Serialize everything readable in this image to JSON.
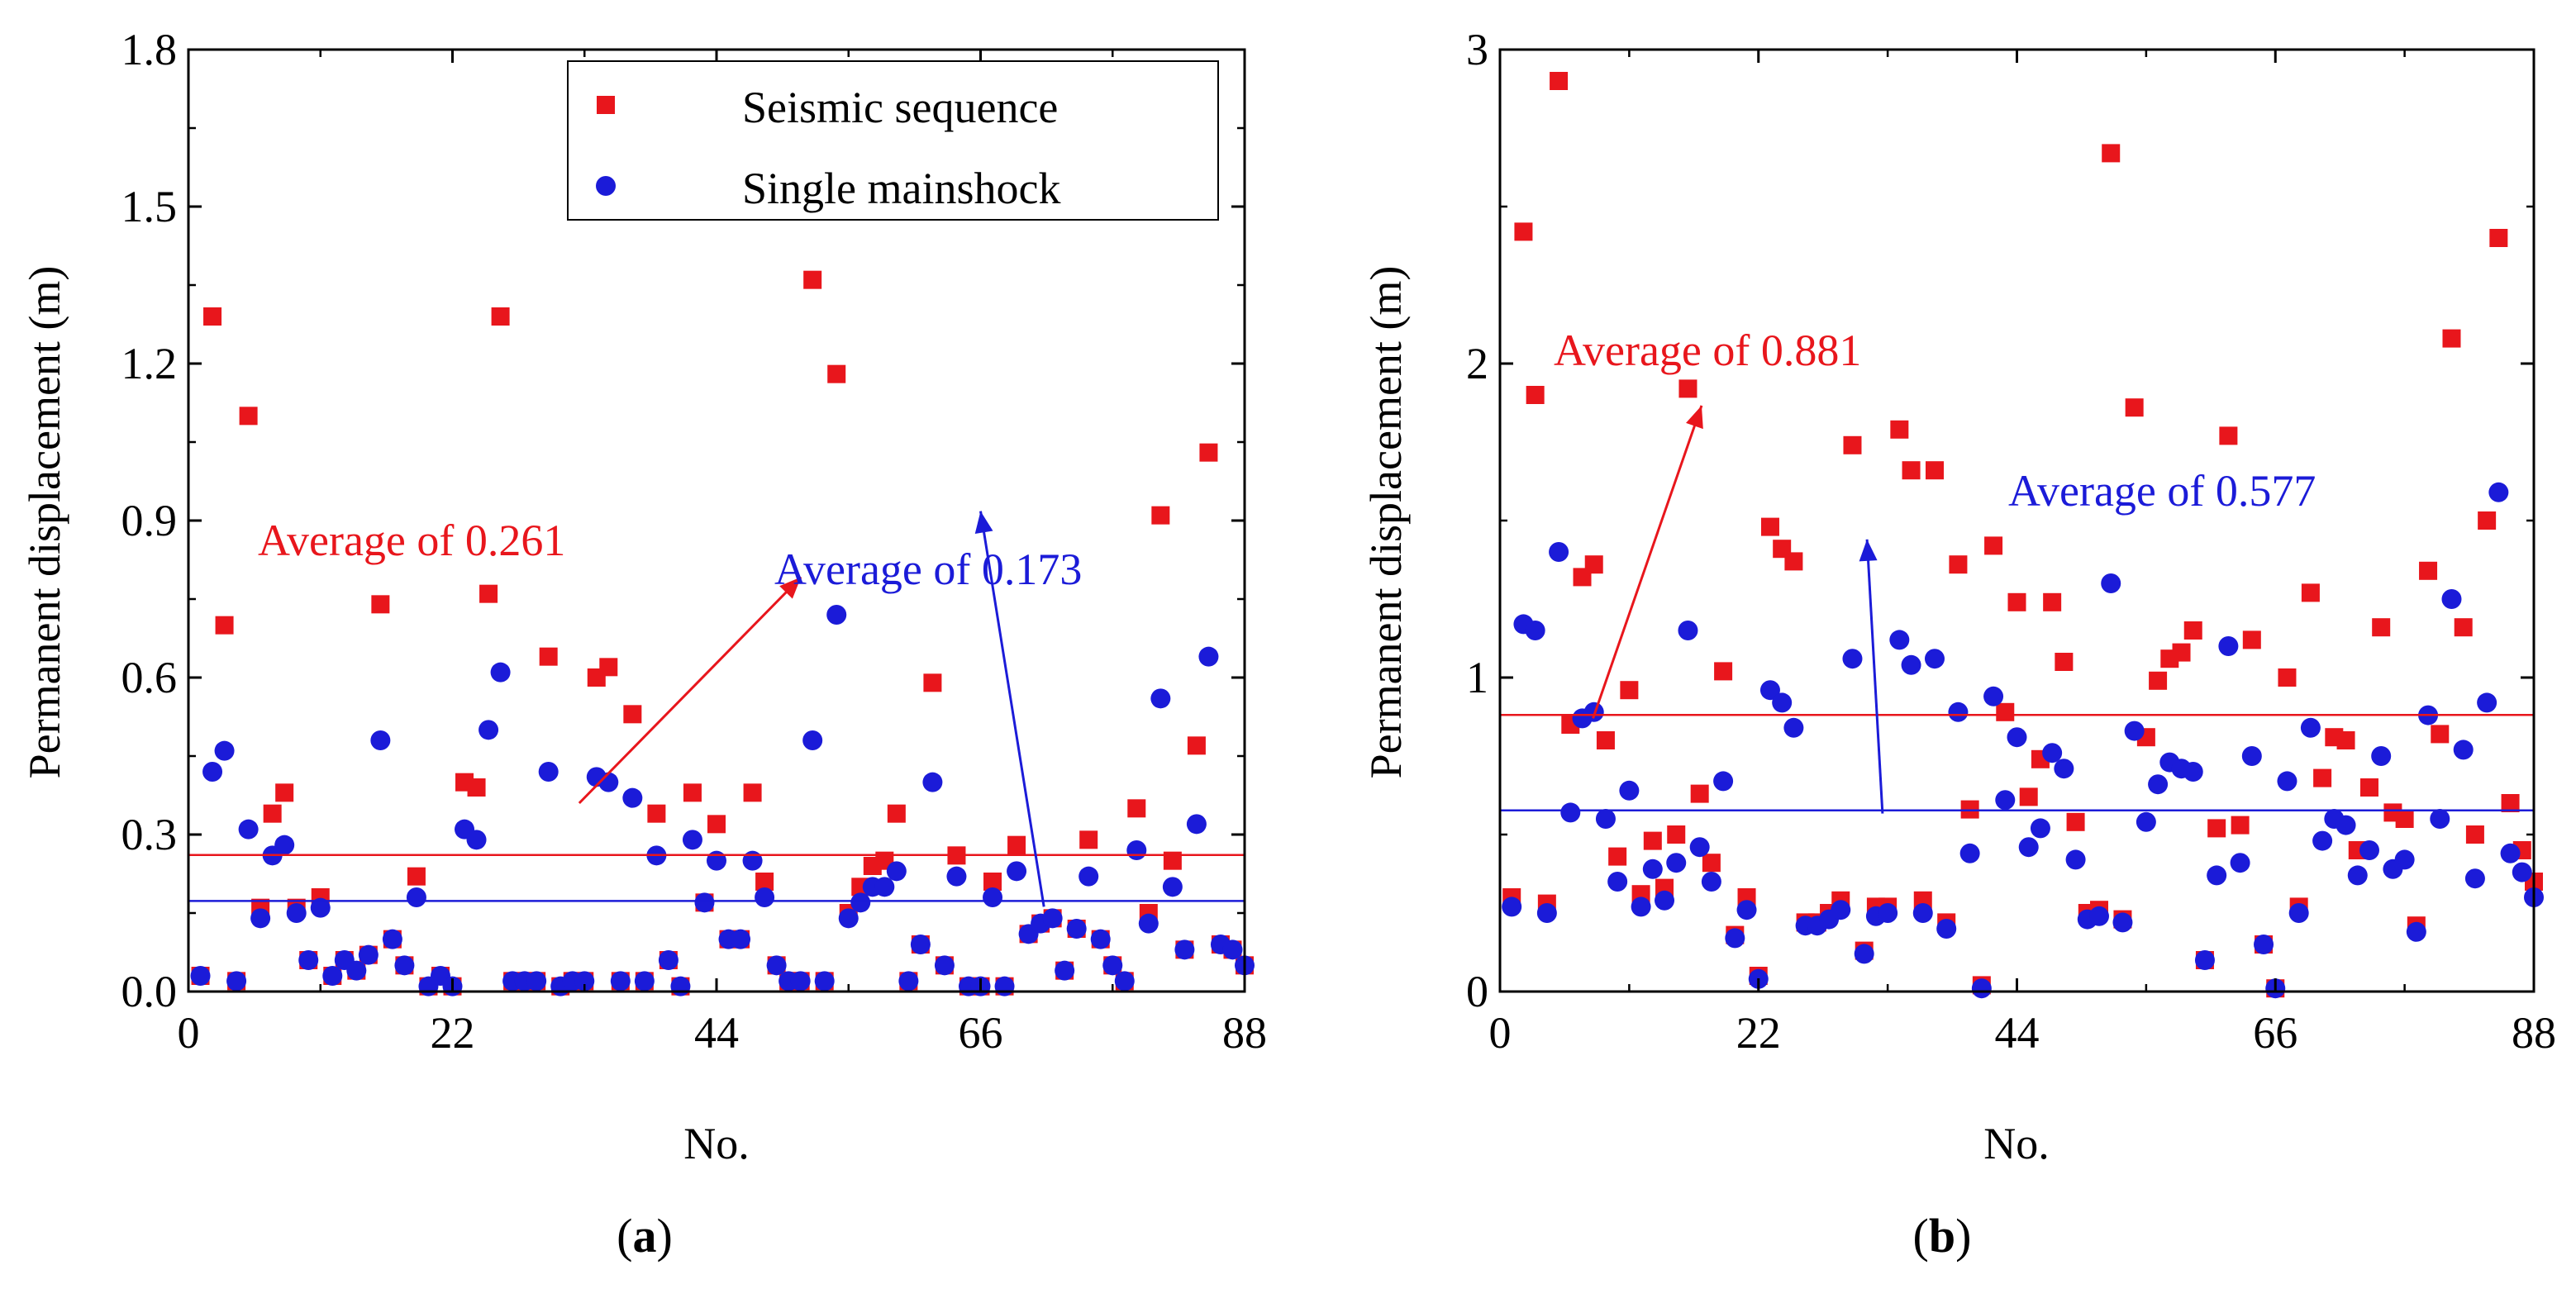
{
  "chart_data": [
    {
      "type": "scatter",
      "panel_label": "a",
      "xlabel": "No.",
      "ylabel": "Permanent displacement (m)",
      "xlim": [
        0,
        88
      ],
      "ylim": [
        0,
        1.8
      ],
      "xticks": [
        0,
        22,
        44,
        66,
        88
      ],
      "yticks": [
        0.0,
        0.3,
        0.6,
        0.9,
        1.2,
        1.5,
        1.8
      ],
      "ytick_labels": [
        "0.0",
        "0.3",
        "0.6",
        "0.9",
        "1.2",
        "1.5",
        "1.8"
      ],
      "legend": {
        "position": "top-right",
        "entries": [
          "Seismic sequence",
          "Single mainshock"
        ]
      },
      "series": [
        {
          "name": "Seismic sequence",
          "color": "#e8161c",
          "marker": "square",
          "x": [
            1,
            2,
            3,
            4,
            5,
            6,
            7,
            8,
            9,
            10,
            11,
            12,
            13,
            14,
            15,
            16,
            17,
            18,
            19,
            20,
            21,
            22,
            23,
            24,
            25,
            26,
            27,
            28,
            29,
            30,
            31,
            32,
            33,
            34,
            35,
            36,
            37,
            38,
            39,
            40,
            41,
            42,
            43,
            44,
            45,
            46,
            47,
            48,
            49,
            50,
            51,
            52,
            53,
            54,
            55,
            56,
            57,
            58,
            59,
            60,
            61,
            62,
            63,
            64,
            65,
            66,
            67,
            68,
            69,
            70,
            71,
            72,
            73,
            74,
            75,
            76,
            77,
            78,
            79,
            80,
            81,
            82,
            83,
            84,
            85,
            86,
            87,
            88
          ],
          "values": [
            0.03,
            1.29,
            0.7,
            0.02,
            1.1,
            0.16,
            0.34,
            0.38,
            0.16,
            0.06,
            0.18,
            0.03,
            0.06,
            0.04,
            0.07,
            0.74,
            0.1,
            0.05,
            0.22,
            0.01,
            0.03,
            0.01,
            0.4,
            0.39,
            0.76,
            1.29,
            0.02,
            0.02,
            0.02,
            0.64,
            0.01,
            0.02,
            0.02,
            0.6,
            0.62,
            0.02,
            0.53,
            0.02,
            0.34,
            0.06,
            0.01,
            0.38,
            0.17,
            0.32,
            0.1,
            0.1,
            0.38,
            0.21,
            0.05,
            0.02,
            0.02,
            1.36,
            0.02,
            1.18,
            0.15,
            0.2,
            0.24,
            0.25,
            0.34,
            0.02,
            0.09,
            0.59,
            0.05,
            0.26,
            0.01,
            0.01,
            0.21,
            0.01,
            0.28,
            0.11,
            0.13,
            0.14,
            0.04,
            0.12,
            0.29,
            0.1,
            0.05,
            0.02,
            0.35,
            0.15,
            0.91,
            0.25,
            0.08,
            0.47,
            1.03,
            0.09,
            0.08,
            0.05
          ],
          "average_label": "Average of 0.261",
          "average_value": 0.261
        },
        {
          "name": "Single mainshock",
          "color": "#1b1bd8",
          "marker": "circle",
          "x": [
            1,
            2,
            3,
            4,
            5,
            6,
            7,
            8,
            9,
            10,
            11,
            12,
            13,
            14,
            15,
            16,
            17,
            18,
            19,
            20,
            21,
            22,
            23,
            24,
            25,
            26,
            27,
            28,
            29,
            30,
            31,
            32,
            33,
            34,
            35,
            36,
            37,
            38,
            39,
            40,
            41,
            42,
            43,
            44,
            45,
            46,
            47,
            48,
            49,
            50,
            51,
            52,
            53,
            54,
            55,
            56,
            57,
            58,
            59,
            60,
            61,
            62,
            63,
            64,
            65,
            66,
            67,
            68,
            69,
            70,
            71,
            72,
            73,
            74,
            75,
            76,
            77,
            78,
            79,
            80,
            81,
            82,
            83,
            84,
            85,
            86,
            87,
            88
          ],
          "values": [
            0.03,
            0.42,
            0.46,
            0.02,
            0.31,
            0.14,
            0.26,
            0.28,
            0.15,
            0.06,
            0.16,
            0.03,
            0.06,
            0.04,
            0.07,
            0.48,
            0.1,
            0.05,
            0.18,
            0.01,
            0.03,
            0.01,
            0.31,
            0.29,
            0.5,
            0.61,
            0.02,
            0.02,
            0.02,
            0.42,
            0.01,
            0.02,
            0.02,
            0.41,
            0.4,
            0.02,
            0.37,
            0.02,
            0.26,
            0.06,
            0.01,
            0.29,
            0.17,
            0.25,
            0.1,
            0.1,
            0.25,
            0.18,
            0.05,
            0.02,
            0.02,
            0.48,
            0.02,
            0.72,
            0.14,
            0.17,
            0.2,
            0.2,
            0.23,
            0.02,
            0.09,
            0.4,
            0.05,
            0.22,
            0.01,
            0.01,
            0.18,
            0.01,
            0.23,
            0.11,
            0.13,
            0.14,
            0.04,
            0.12,
            0.22,
            0.1,
            0.05,
            0.02,
            0.27,
            0.13,
            0.56,
            0.2,
            0.08,
            0.32,
            0.64,
            0.09,
            0.08,
            0.05
          ],
          "average_label": "Average of 0.173",
          "average_value": 0.173
        }
      ]
    },
    {
      "type": "scatter",
      "panel_label": "b",
      "xlabel": "No.",
      "ylabel": "Permanent displacement (m)",
      "xlim": [
        0,
        88
      ],
      "ylim": [
        0,
        3
      ],
      "xticks": [
        0,
        22,
        44,
        66,
        88
      ],
      "yticks": [
        0,
        1,
        2,
        3
      ],
      "ytick_labels": [
        "0",
        "1",
        "2",
        "3"
      ],
      "series": [
        {
          "name": "Seismic sequence",
          "color": "#e8161c",
          "marker": "square",
          "x": [
            1,
            2,
            3,
            4,
            5,
            6,
            7,
            8,
            9,
            10,
            11,
            12,
            13,
            14,
            15,
            16,
            17,
            18,
            19,
            20,
            21,
            22,
            23,
            24,
            25,
            26,
            27,
            28,
            29,
            30,
            31,
            32,
            33,
            34,
            35,
            36,
            37,
            38,
            39,
            40,
            41,
            42,
            43,
            44,
            45,
            46,
            47,
            48,
            49,
            50,
            51,
            52,
            53,
            54,
            55,
            56,
            57,
            58,
            59,
            60,
            61,
            62,
            63,
            64,
            65,
            66,
            67,
            68,
            69,
            70,
            71,
            72,
            73,
            74,
            75,
            76,
            77,
            78,
            79,
            80,
            81,
            82,
            83,
            84,
            85,
            86,
            87,
            88
          ],
          "values": [
            0.3,
            2.42,
            1.9,
            0.28,
            2.9,
            0.85,
            1.32,
            1.36,
            0.8,
            0.43,
            0.96,
            0.31,
            0.48,
            0.33,
            0.5,
            1.92,
            0.63,
            0.41,
            1.02,
            0.18,
            0.3,
            0.05,
            1.48,
            1.41,
            1.37,
            0.22,
            0.22,
            0.25,
            0.29,
            1.74,
            0.13,
            0.27,
            0.27,
            1.79,
            1.66,
            0.29,
            1.66,
            0.22,
            1.36,
            0.58,
            0.02,
            1.42,
            0.89,
            1.24,
            0.62,
            0.74,
            1.24,
            1.05,
            0.54,
            0.25,
            0.26,
            2.67,
            0.23,
            1.86,
            0.81,
            0.99,
            1.06,
            1.08,
            1.15,
            0.1,
            0.52,
            1.77,
            0.53,
            1.12,
            0.15,
            0.01,
            1.0,
            0.27,
            1.27,
            0.68,
            0.81,
            0.8,
            0.45,
            0.65,
            1.16,
            0.57,
            0.55,
            0.21,
            1.34,
            0.82,
            2.08,
            1.16,
            0.5,
            1.5,
            2.4,
            0.6,
            0.45,
            0.35
          ],
          "average_label": "Average of 0.881",
          "average_value": 0.881
        },
        {
          "name": "Single mainshock",
          "color": "#1b1bd8",
          "marker": "circle",
          "x": [
            1,
            2,
            3,
            4,
            5,
            6,
            7,
            8,
            9,
            10,
            11,
            12,
            13,
            14,
            15,
            16,
            17,
            18,
            19,
            20,
            21,
            22,
            23,
            24,
            25,
            26,
            27,
            28,
            29,
            30,
            31,
            32,
            33,
            34,
            35,
            36,
            37,
            38,
            39,
            40,
            41,
            42,
            43,
            44,
            45,
            46,
            47,
            48,
            49,
            50,
            51,
            52,
            53,
            54,
            55,
            56,
            57,
            58,
            59,
            60,
            61,
            62,
            63,
            64,
            65,
            66,
            67,
            68,
            69,
            70,
            71,
            72,
            73,
            74,
            75,
            76,
            77,
            78,
            79,
            80,
            81,
            82,
            83,
            84,
            85,
            86,
            87,
            88
          ],
          "values": [
            0.27,
            1.17,
            1.15,
            0.25,
            1.4,
            0.57,
            0.87,
            0.89,
            0.55,
            0.35,
            0.64,
            0.27,
            0.39,
            0.29,
            0.41,
            1.15,
            0.46,
            0.35,
            0.67,
            0.17,
            0.26,
            0.04,
            0.96,
            0.92,
            0.84,
            0.21,
            0.21,
            0.23,
            0.26,
            1.06,
            0.12,
            0.24,
            0.25,
            1.12,
            1.04,
            0.25,
            1.06,
            0.2,
            0.89,
            0.44,
            0.01,
            0.94,
            0.61,
            0.81,
            0.46,
            0.52,
            0.76,
            0.71,
            0.42,
            0.23,
            0.24,
            1.3,
            0.22,
            0.83,
            0.54,
            0.66,
            0.73,
            0.71,
            0.7,
            0.1,
            0.37,
            1.1,
            0.41,
            0.75,
            0.15,
            0.01,
            0.67,
            0.25,
            0.84,
            0.48,
            0.55,
            0.53,
            0.37,
            0.45,
            0.75,
            0.39,
            0.42,
            0.19,
            0.88,
            0.55,
            1.25,
            0.77,
            0.36,
            0.92,
            1.59,
            0.44,
            0.38,
            0.3
          ],
          "average_label": "Average of 0.577",
          "average_value": 0.577
        }
      ]
    }
  ]
}
